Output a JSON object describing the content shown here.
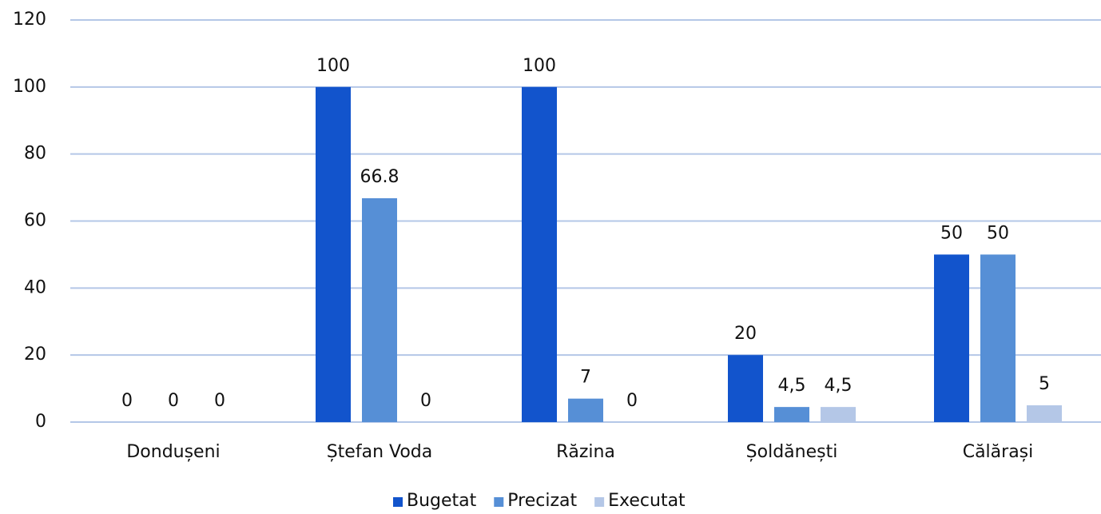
{
  "chart_data": {
    "type": "bar",
    "categories": [
      "Dondușeni",
      "Ștefan Voda",
      "Răzina",
      "Șoldănești",
      "Călărași"
    ],
    "series": [
      {
        "name": "Bugetat",
        "color": "#1254cc",
        "values": [
          0,
          100,
          100,
          20,
          50
        ]
      },
      {
        "name": "Precizat",
        "color": "#568fd6",
        "values": [
          0,
          66.8,
          7,
          4.5,
          50
        ],
        "value_labels": [
          "0",
          "66.8",
          "7",
          "4,5",
          "50"
        ]
      },
      {
        "name": "Executat",
        "color": "#b4c7e7",
        "values": [
          0,
          0,
          0,
          4.5,
          5
        ],
        "value_labels": [
          "0",
          "0",
          "0",
          "4,5",
          "5"
        ]
      }
    ],
    "ylim": [
      0,
      120
    ],
    "yticks": [
      0,
      20,
      40,
      60,
      80,
      100,
      120
    ],
    "grid": true,
    "legend": "bottom"
  }
}
